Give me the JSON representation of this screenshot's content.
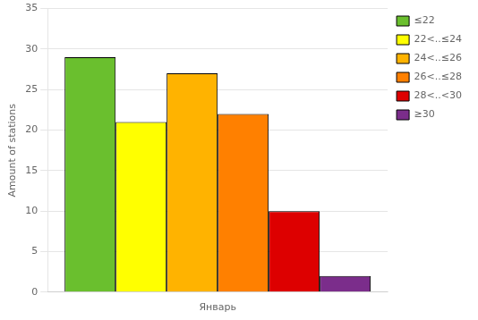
{
  "chart_data": {
    "type": "bar",
    "ylabel": "Amount of stations",
    "categories": [
      "Январь"
    ],
    "series": [
      {
        "name": "≤22",
        "color": "#6abf2e",
        "values": [
          29
        ]
      },
      {
        "name": "22<..≤24",
        "color": "#ffff00",
        "values": [
          21
        ]
      },
      {
        "name": "24<..≤26",
        "color": "#ffb300",
        "values": [
          27
        ]
      },
      {
        "name": "26<..≤28",
        "color": "#ff8000",
        "values": [
          22
        ]
      },
      {
        "name": "28<..<30",
        "color": "#dd0000",
        "values": [
          10
        ]
      },
      {
        "name": "≥30",
        "color": "#7b2d8b",
        "values": [
          2
        ]
      }
    ],
    "ylim": [
      0,
      35
    ],
    "yticks": [
      0,
      5,
      10,
      15,
      20,
      25,
      30,
      35
    ],
    "grid": true,
    "legend": "upper right"
  }
}
